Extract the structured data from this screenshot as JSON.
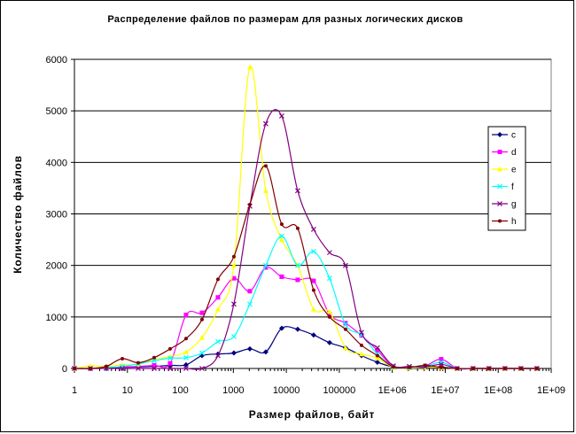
{
  "chart_data": {
    "type": "line",
    "title": "Распределение файлов по размерам для разных логических дисков",
    "xlabel": "Размер файлов, байт",
    "ylabel": "Количество файлов",
    "x_scale": "log",
    "xlim": [
      1,
      1000000000
    ],
    "ylim": [
      0,
      6000
    ],
    "x_tick_labels": [
      "1",
      "10",
      "100",
      "1000",
      "10000",
      "100000",
      "1E+06",
      "1E+07",
      "1E+08",
      "1E+09"
    ],
    "y_tick_labels": [
      "0",
      "1000",
      "2000",
      "3000",
      "4000",
      "5000",
      "6000"
    ],
    "grid": "horizontal",
    "legend_position": "right",
    "x": [
      1,
      2,
      4,
      8,
      16,
      32,
      64,
      128,
      256,
      512,
      1024,
      2048,
      4096,
      8192,
      16384,
      32768,
      65536,
      131072,
      262144,
      524288,
      1048576,
      2097152,
      4194304,
      8388608,
      16777216,
      33554432,
      67108864,
      134217728,
      268435456,
      536870912
    ],
    "series": [
      {
        "name": "c",
        "color": "#000080",
        "marker": "diamond",
        "values": [
          0,
          0,
          10,
          20,
          30,
          40,
          60,
          70,
          250,
          280,
          300,
          380,
          320,
          780,
          760,
          650,
          500,
          400,
          250,
          120,
          30,
          10,
          20,
          30,
          0,
          0,
          0,
          0,
          0,
          0
        ]
      },
      {
        "name": "d",
        "color": "#ff00ff",
        "marker": "square",
        "values": [
          0,
          0,
          20,
          30,
          40,
          60,
          100,
          1040,
          1080,
          1380,
          1750,
          1500,
          1960,
          1780,
          1720,
          1700,
          1050,
          880,
          640,
          350,
          30,
          20,
          50,
          180,
          0,
          0,
          0,
          0,
          0,
          0
        ]
      },
      {
        "name": "e",
        "color": "#ffff00",
        "marker": "triangle",
        "values": [
          0,
          50,
          40,
          70,
          80,
          180,
          230,
          320,
          600,
          1150,
          2000,
          5850,
          3450,
          2500,
          2000,
          1150,
          1100,
          400,
          280,
          200,
          20,
          10,
          20,
          20,
          0,
          0,
          0,
          0,
          0,
          0
        ]
      },
      {
        "name": "f",
        "color": "#00ffff",
        "marker": "x",
        "values": [
          0,
          0,
          20,
          40,
          90,
          150,
          200,
          210,
          300,
          520,
          620,
          1250,
          2000,
          2570,
          2000,
          2270,
          1750,
          850,
          650,
          280,
          30,
          20,
          40,
          120,
          0,
          0,
          0,
          0,
          0,
          0
        ]
      },
      {
        "name": "g",
        "color": "#800080",
        "marker": "x",
        "values": [
          0,
          0,
          0,
          0,
          0,
          0,
          0,
          0,
          0,
          250,
          1250,
          3150,
          4750,
          4900,
          3450,
          2700,
          2250,
          2000,
          700,
          400,
          50,
          40,
          30,
          80,
          0,
          0,
          0,
          0,
          0,
          0
        ]
      },
      {
        "name": "h",
        "color": "#800000",
        "marker": "circle",
        "values": [
          0,
          0,
          40,
          190,
          110,
          210,
          380,
          580,
          950,
          1730,
          2170,
          3180,
          3930,
          2800,
          2720,
          1520,
          1000,
          760,
          450,
          250,
          30,
          20,
          60,
          20,
          0,
          0,
          0,
          0,
          0,
          0
        ]
      }
    ]
  }
}
